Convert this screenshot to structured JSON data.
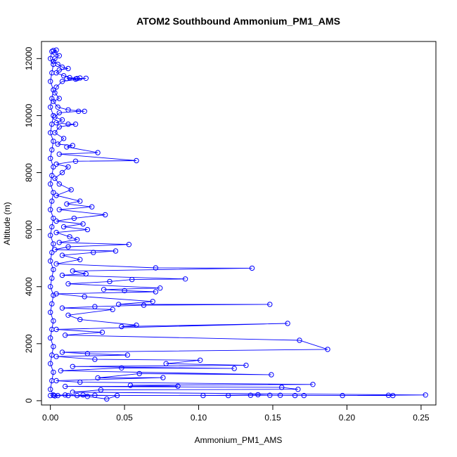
{
  "chart_data": {
    "type": "scatter",
    "title": "ATOM2 Southbound Ammonium_PM1_AMS",
    "xlabel": "Ammonium_PM1_AMS",
    "ylabel": "Altitude (m)",
    "xlim": [
      -0.006,
      0.26
    ],
    "ylim": [
      -150,
      12600
    ],
    "xticks": [
      0.0,
      0.05,
      0.1,
      0.15,
      0.2,
      0.25
    ],
    "xtick_labels": [
      "0.00",
      "0.05",
      "0.10",
      "0.15",
      "0.20",
      "0.25"
    ],
    "yticks": [
      0,
      2000,
      4000,
      6000,
      8000,
      10000,
      12000
    ],
    "ytick_labels": [
      "0",
      "2000",
      "4000",
      "6000",
      "8000",
      "10000",
      "12000"
    ],
    "grid": false,
    "series": [
      {
        "color": "#0000ff",
        "marker": "open-circle",
        "connected": true,
        "points": [
          [
            0.002,
            12280
          ],
          [
            0.004,
            12300
          ],
          [
            0.003,
            12200
          ],
          [
            0.006,
            12100
          ],
          [
            0.003,
            12000
          ],
          [
            0.002,
            11900
          ],
          [
            0.005,
            11800
          ],
          [
            0.008,
            11700
          ],
          [
            0.012,
            11650
          ],
          [
            0.006,
            11600
          ],
          [
            0.004,
            11500
          ],
          [
            0.009,
            11400
          ],
          [
            0.013,
            11330
          ],
          [
            0.018,
            11300
          ],
          [
            0.02,
            11320
          ],
          [
            0.017,
            11280
          ],
          [
            0.011,
            11300
          ],
          [
            0.024,
            11310
          ],
          [
            0.008,
            11200
          ],
          [
            0.004,
            11000
          ],
          [
            0.003,
            10800
          ],
          [
            0.006,
            10600
          ],
          [
            0.002,
            10500
          ],
          [
            0.005,
            10300
          ],
          [
            0.012,
            10200
          ],
          [
            0.023,
            10150
          ],
          [
            0.019,
            10150
          ],
          [
            0.006,
            10100
          ],
          [
            0.003,
            9950
          ],
          [
            0.008,
            9850
          ],
          [
            0.004,
            9750
          ],
          [
            0.012,
            9700
          ],
          [
            0.017,
            9700
          ],
          [
            0.006,
            9600
          ],
          [
            0.003,
            9400
          ],
          [
            0.009,
            9200
          ],
          [
            0.005,
            9000
          ],
          [
            0.015,
            8950
          ],
          [
            0.011,
            8900
          ],
          [
            0.032,
            8700
          ],
          [
            0.006,
            8650
          ],
          [
            0.058,
            8420
          ],
          [
            0.017,
            8400
          ],
          [
            0.004,
            8300
          ],
          [
            0.012,
            8200
          ],
          [
            0.008,
            8000
          ],
          [
            0.003,
            7800
          ],
          [
            0.006,
            7600
          ],
          [
            0.014,
            7400
          ],
          [
            0.004,
            7200
          ],
          [
            0.02,
            7000
          ],
          [
            0.011,
            6900
          ],
          [
            0.028,
            6800
          ],
          [
            0.006,
            6700
          ],
          [
            0.037,
            6520
          ],
          [
            0.016,
            6400
          ],
          [
            0.004,
            6300
          ],
          [
            0.022,
            6200
          ],
          [
            0.009,
            6100
          ],
          [
            0.025,
            6000
          ],
          [
            0.004,
            5900
          ],
          [
            0.013,
            5750
          ],
          [
            0.018,
            5650
          ],
          [
            0.006,
            5550
          ],
          [
            0.053,
            5480
          ],
          [
            0.012,
            5400
          ],
          [
            0.003,
            5300
          ],
          [
            0.044,
            5250
          ],
          [
            0.029,
            5200
          ],
          [
            0.008,
            5100
          ],
          [
            0.02,
            4950
          ],
          [
            0.004,
            4800
          ],
          [
            0.071,
            4660
          ],
          [
            0.136,
            4650
          ],
          [
            0.015,
            4550
          ],
          [
            0.024,
            4450
          ],
          [
            0.008,
            4400
          ],
          [
            0.091,
            4270
          ],
          [
            0.055,
            4250
          ],
          [
            0.04,
            4180
          ],
          [
            0.012,
            4100
          ],
          [
            0.074,
            3950
          ],
          [
            0.036,
            3900
          ],
          [
            0.05,
            3860
          ],
          [
            0.071,
            3820
          ],
          [
            0.004,
            3750
          ],
          [
            0.023,
            3650
          ],
          [
            0.069,
            3480
          ],
          [
            0.046,
            3380
          ],
          [
            0.148,
            3380
          ],
          [
            0.063,
            3350
          ],
          [
            0.03,
            3300
          ],
          [
            0.008,
            3250
          ],
          [
            0.042,
            3200
          ],
          [
            0.012,
            3000
          ],
          [
            0.02,
            2850
          ],
          [
            0.058,
            2650
          ],
          [
            0.048,
            2600
          ],
          [
            0.16,
            2710
          ],
          [
            0.004,
            2500
          ],
          [
            0.035,
            2400
          ],
          [
            0.01,
            2300
          ],
          [
            0.168,
            2120
          ],
          [
            0.187,
            1800
          ],
          [
            0.008,
            1700
          ],
          [
            0.025,
            1650
          ],
          [
            0.052,
            1600
          ],
          [
            0.004,
            1550
          ],
          [
            0.03,
            1450
          ],
          [
            0.101,
            1420
          ],
          [
            0.078,
            1300
          ],
          [
            0.132,
            1240
          ],
          [
            0.015,
            1200
          ],
          [
            0.124,
            1130
          ],
          [
            0.048,
            1150
          ],
          [
            0.007,
            1050
          ],
          [
            0.149,
            910
          ],
          [
            0.06,
            950
          ],
          [
            0.032,
            800
          ],
          [
            0.076,
            810
          ],
          [
            0.004,
            700
          ],
          [
            0.02,
            650
          ],
          [
            0.177,
            570
          ],
          [
            0.054,
            540
          ],
          [
            0.086,
            510
          ],
          [
            0.01,
            500
          ],
          [
            0.156,
            470
          ],
          [
            0.167,
            400
          ],
          [
            0.034,
            380
          ],
          [
            0.015,
            300
          ],
          [
            0.253,
            200
          ],
          [
            0.228,
            190
          ],
          [
            0.197,
            180
          ],
          [
            0.231,
            180
          ],
          [
            0.171,
            180
          ],
          [
            0.165,
            180
          ],
          [
            0.148,
            190
          ],
          [
            0.14,
            210
          ],
          [
            0.103,
            180
          ],
          [
            0.12,
            180
          ],
          [
            0.135,
            190
          ],
          [
            0.155,
            190
          ],
          [
            0.005,
            180
          ],
          [
            0.002,
            190
          ],
          [
            0.01,
            200
          ],
          [
            0.018,
            180
          ],
          [
            0.022,
            200
          ],
          [
            0.03,
            190
          ],
          [
            0.045,
            180
          ],
          [
            0.038,
            60
          ],
          [
            0.025,
            150
          ],
          [
            0.012,
            180
          ],
          [
            0.003,
            170
          ],
          [
            0.0,
            180
          ]
        ]
      },
      {
        "color": "#0000ff",
        "marker": "open-circle",
        "connected": true,
        "points": [
          [
            0.001,
            12250
          ],
          [
            0.0,
            12000
          ],
          [
            0.002,
            11800
          ],
          [
            0.001,
            11500
          ],
          [
            0.0,
            11200
          ],
          [
            0.002,
            10900
          ],
          [
            0.001,
            10600
          ],
          [
            0.0,
            10300
          ],
          [
            0.002,
            10000
          ],
          [
            0.001,
            9700
          ],
          [
            0.0,
            9400
          ],
          [
            0.002,
            9100
          ],
          [
            0.001,
            8800
          ],
          [
            0.0,
            8500
          ],
          [
            0.002,
            8200
          ],
          [
            0.001,
            7900
          ],
          [
            0.0,
            7600
          ],
          [
            0.002,
            7300
          ],
          [
            0.001,
            7000
          ],
          [
            0.0,
            6700
          ],
          [
            0.002,
            6400
          ],
          [
            0.001,
            6100
          ],
          [
            0.0,
            5800
          ],
          [
            0.002,
            5500
          ],
          [
            0.001,
            5200
          ],
          [
            0.0,
            4900
          ],
          [
            0.002,
            4600
          ],
          [
            0.001,
            4300
          ],
          [
            0.0,
            4000
          ],
          [
            0.002,
            3700
          ],
          [
            0.001,
            3400
          ],
          [
            0.0,
            3100
          ],
          [
            0.002,
            2800
          ],
          [
            0.001,
            2500
          ],
          [
            0.0,
            2200
          ],
          [
            0.002,
            1900
          ],
          [
            0.001,
            1600
          ],
          [
            0.0,
            1300
          ],
          [
            0.002,
            1000
          ],
          [
            0.001,
            700
          ],
          [
            0.0,
            400
          ],
          [
            0.002,
            200
          ]
        ]
      }
    ]
  }
}
